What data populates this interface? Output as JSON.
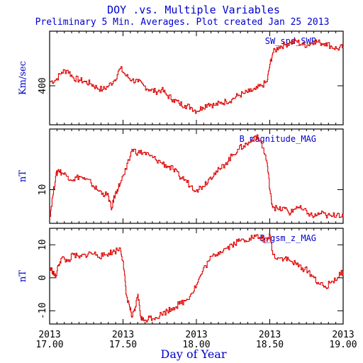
{
  "title": "DOY .vs. Multiple Variables",
  "subtitle": "Preliminary 5 Min. Averages. Plot created Jan 25 2013",
  "xlabel": "Day of Year",
  "colors": {
    "text": "#0000cc",
    "line": "#dd0000",
    "axis": "#000000"
  },
  "x_ticks": [
    {
      "year": "2013",
      "day": "17.00",
      "value": 17.0
    },
    {
      "year": "2013",
      "day": "17.50",
      "value": 17.5
    },
    {
      "year": "2013",
      "day": "18.00",
      "value": 18.0
    },
    {
      "year": "2013",
      "day": "18.50",
      "value": 18.5
    },
    {
      "year": "2013",
      "day": "19.00",
      "value": 19.0
    }
  ],
  "chart_data": [
    {
      "type": "line",
      "series_label": "SW_spd_SWP",
      "ylabel": "Km/sec",
      "xlim": [
        17.0,
        19.0
      ],
      "ylim": [
        300,
        540
      ],
      "y_ticks": [
        {
          "label": "400",
          "value": 400
        }
      ],
      "x": [
        17.0,
        17.04,
        17.08,
        17.12,
        17.16,
        17.2,
        17.24,
        17.28,
        17.32,
        17.36,
        17.4,
        17.44,
        17.48,
        17.52,
        17.56,
        17.6,
        17.64,
        17.68,
        17.72,
        17.76,
        17.8,
        17.84,
        17.88,
        17.92,
        17.96,
        18.0,
        18.04,
        18.08,
        18.12,
        18.16,
        18.2,
        18.24,
        18.28,
        18.32,
        18.36,
        18.4,
        18.44,
        18.48,
        18.5,
        18.52,
        18.56,
        18.6,
        18.64,
        18.68,
        18.72,
        18.76,
        18.8,
        18.84,
        18.88,
        18.92,
        18.96,
        19.0
      ],
      "y": [
        410,
        415,
        435,
        440,
        420,
        415,
        410,
        405,
        395,
        390,
        400,
        415,
        445,
        425,
        415,
        410,
        400,
        390,
        385,
        390,
        375,
        365,
        355,
        350,
        345,
        335,
        345,
        355,
        350,
        355,
        360,
        365,
        375,
        380,
        385,
        390,
        400,
        410,
        455,
        485,
        500,
        505,
        510,
        515,
        505,
        505,
        515,
        510,
        510,
        500,
        495,
        500
      ]
    },
    {
      "type": "line",
      "series_label": "B_magnitude_MAG",
      "ylabel": "nT",
      "xlim": [
        17.0,
        19.0
      ],
      "ylim": [
        5,
        19
      ],
      "y_ticks": [
        {
          "label": "10",
          "value": 10
        }
      ],
      "x": [
        17.0,
        17.02,
        17.04,
        17.06,
        17.08,
        17.12,
        17.16,
        17.2,
        17.24,
        17.28,
        17.32,
        17.36,
        17.4,
        17.42,
        17.44,
        17.46,
        17.48,
        17.52,
        17.56,
        17.6,
        17.64,
        17.68,
        17.72,
        17.76,
        17.8,
        17.84,
        17.88,
        17.92,
        17.96,
        18.0,
        18.04,
        18.08,
        18.12,
        18.16,
        18.2,
        18.24,
        18.28,
        18.32,
        18.36,
        18.4,
        18.44,
        18.48,
        18.5,
        18.51,
        18.52,
        18.56,
        18.6,
        18.64,
        18.68,
        18.72,
        18.76,
        18.8,
        18.84,
        18.88,
        18.92,
        18.96,
        19.0
      ],
      "y": [
        6,
        9,
        12,
        13,
        12.5,
        12,
        11.5,
        12,
        11.5,
        11,
        10,
        9.5,
        9,
        7,
        9,
        10,
        11,
        13,
        16,
        15.5,
        15.5,
        15,
        14.5,
        14,
        13.5,
        13,
        12,
        11.5,
        10.5,
        10,
        10.5,
        11.5,
        12.5,
        13,
        14,
        15,
        16,
        16.5,
        17,
        18,
        17,
        14,
        10,
        8.5,
        7.5,
        7,
        7.2,
        6.5,
        7.5,
        7,
        6.5,
        6,
        6.5,
        6.2,
        6,
        6.5,
        6
      ]
    },
    {
      "type": "line",
      "series_label": "B_gsm_z_MAG",
      "ylabel": "nT",
      "xlim": [
        17.0,
        19.0
      ],
      "ylim": [
        -14,
        15
      ],
      "y_ticks": [
        {
          "label": "10",
          "value": 10
        },
        {
          "label": "0",
          "value": 0
        },
        {
          "label": "-10",
          "value": -10
        }
      ],
      "x": [
        17.0,
        17.02,
        17.04,
        17.06,
        17.08,
        17.12,
        17.16,
        17.2,
        17.24,
        17.28,
        17.32,
        17.36,
        17.4,
        17.44,
        17.48,
        17.5,
        17.52,
        17.54,
        17.56,
        17.58,
        17.6,
        17.62,
        17.64,
        17.68,
        17.72,
        17.76,
        17.8,
        17.84,
        17.88,
        17.92,
        17.96,
        18.0,
        18.04,
        18.08,
        18.12,
        18.16,
        18.2,
        18.24,
        18.28,
        18.32,
        18.36,
        18.4,
        18.44,
        18.48,
        18.5,
        18.52,
        18.56,
        18.6,
        18.64,
        18.68,
        18.72,
        18.76,
        18.8,
        18.84,
        18.88,
        18.92,
        18.96,
        19.0
      ],
      "y": [
        3,
        2,
        0,
        4,
        6,
        5,
        7,
        6,
        7,
        7.5,
        7,
        6.5,
        7.5,
        8,
        9,
        5,
        -5,
        -8,
        -12,
        -10,
        -5,
        -12,
        -13,
        -12,
        -12,
        -11,
        -10,
        -9,
        -8,
        -7,
        -5,
        -2,
        2,
        5,
        7,
        8,
        9,
        10,
        11,
        11.5,
        12,
        12.5,
        12,
        11,
        13,
        7,
        6,
        6,
        5,
        4,
        3,
        2,
        0,
        -2,
        -3,
        -1,
        0,
        2
      ]
    }
  ]
}
